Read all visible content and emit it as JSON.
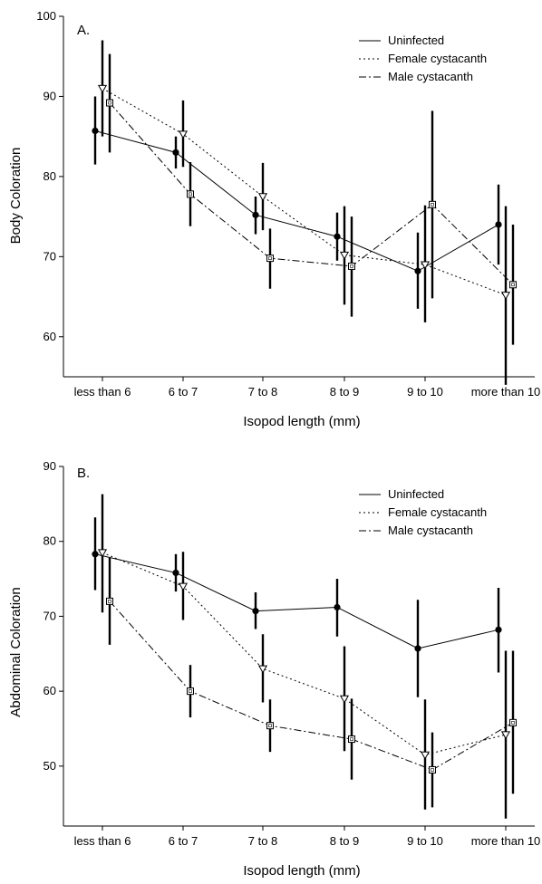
{
  "chart_data": [
    {
      "type": "line",
      "panel_label": "A.",
      "categories": [
        "less than 6",
        "6 to 7",
        "7 to 8",
        "8 to 9",
        "9 to 10",
        "more than 10"
      ],
      "xlabel": "Isopod length (mm)",
      "ylabel": "Body Coloration",
      "ylim": [
        55,
        100
      ],
      "yticks": [
        60,
        70,
        80,
        90,
        100
      ],
      "grid": false,
      "legend_position": "top-right",
      "series": [
        {
          "name": "Uninfected",
          "line_style": "solid",
          "marker": "filled-circle",
          "values": [
            85.7,
            83.0,
            75.2,
            72.5,
            68.2,
            74.0
          ],
          "error_low": [
            81.5,
            81.0,
            72.8,
            69.5,
            63.5,
            69.0
          ],
          "error_high": [
            90.0,
            85.0,
            77.5,
            75.5,
            73.0,
            79.0
          ]
        },
        {
          "name": "Female cystacanth",
          "line_style": "dotted",
          "marker": "open-triangle-down",
          "values": [
            91.0,
            85.3,
            77.5,
            70.2,
            69.0,
            65.2
          ],
          "error_low": [
            85.0,
            81.2,
            73.3,
            64.0,
            61.8,
            54.0
          ],
          "error_high": [
            97.0,
            89.5,
            81.7,
            76.3,
            76.4,
            76.3
          ]
        },
        {
          "name": "Male cystacanth",
          "line_style": "dash-dot",
          "marker": "open-square",
          "values": [
            89.2,
            77.8,
            69.8,
            68.8,
            76.5,
            66.5
          ],
          "error_low": [
            83.0,
            73.8,
            66.0,
            62.5,
            64.8,
            59.0
          ],
          "error_high": [
            95.3,
            81.8,
            73.5,
            75.0,
            88.2,
            74.0
          ]
        }
      ]
    },
    {
      "type": "line",
      "panel_label": "B.",
      "categories": [
        "less than 6",
        "6 to 7",
        "7 to 8",
        "8 to 9",
        "9 to 10",
        "more than 10"
      ],
      "xlabel": "Isopod length (mm)",
      "ylabel": "Abdominal Coloration",
      "ylim": [
        42,
        90
      ],
      "yticks": [
        50,
        60,
        70,
        80,
        90
      ],
      "grid": false,
      "legend_position": "top-right",
      "series": [
        {
          "name": "Uninfected",
          "line_style": "solid",
          "marker": "filled-circle",
          "values": [
            78.3,
            75.8,
            70.7,
            71.2,
            65.7,
            68.2
          ],
          "error_low": [
            73.5,
            73.3,
            68.3,
            67.3,
            59.2,
            62.5
          ],
          "error_high": [
            83.2,
            78.3,
            73.2,
            75.0,
            72.2,
            73.8
          ]
        },
        {
          "name": "Female cystacanth",
          "line_style": "dotted",
          "marker": "open-triangle-down",
          "values": [
            78.5,
            74.0,
            63.0,
            59.0,
            51.5,
            54.2
          ],
          "error_low": [
            70.5,
            69.5,
            58.5,
            52.0,
            44.2,
            43.0
          ],
          "error_high": [
            86.3,
            78.6,
            67.6,
            66.0,
            58.9,
            65.4
          ]
        },
        {
          "name": "Male cystacanth",
          "line_style": "dash-dot",
          "marker": "open-square",
          "values": [
            72.0,
            60.0,
            55.4,
            53.6,
            49.5,
            55.8
          ],
          "error_low": [
            66.2,
            56.5,
            51.9,
            48.2,
            44.5,
            46.3
          ],
          "error_high": [
            77.8,
            63.5,
            58.9,
            59.0,
            54.5,
            65.4
          ]
        }
      ]
    }
  ]
}
